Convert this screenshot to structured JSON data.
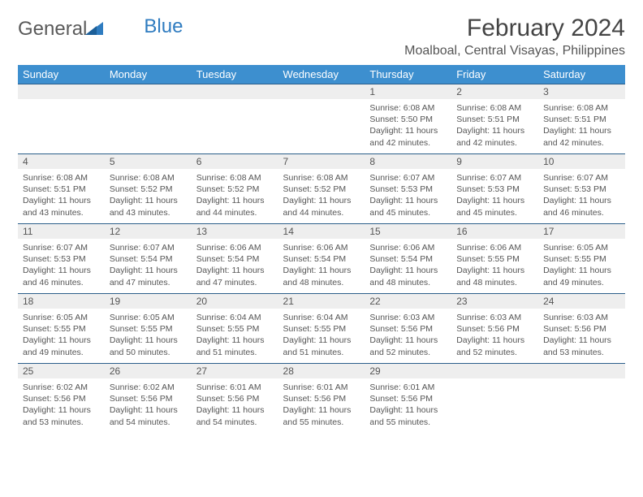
{
  "brand": {
    "part1": "General",
    "part2": "Blue"
  },
  "title": "February 2024",
  "location": "Moalboal, Central Visayas, Philippines",
  "colors": {
    "header_bg": "#3d8fcf",
    "header_text": "#ffffff",
    "daynum_bg": "#eeeeee",
    "week_divider": "#2b5e8a",
    "text": "#555555",
    "brand_blue": "#2f7cc0"
  },
  "day_names": [
    "Sunday",
    "Monday",
    "Tuesday",
    "Wednesday",
    "Thursday",
    "Friday",
    "Saturday"
  ],
  "weeks": [
    [
      null,
      null,
      null,
      null,
      {
        "n": "1",
        "sr": "6:08 AM",
        "ss": "5:50 PM",
        "dl": "11 hours and 42 minutes."
      },
      {
        "n": "2",
        "sr": "6:08 AM",
        "ss": "5:51 PM",
        "dl": "11 hours and 42 minutes."
      },
      {
        "n": "3",
        "sr": "6:08 AM",
        "ss": "5:51 PM",
        "dl": "11 hours and 42 minutes."
      }
    ],
    [
      {
        "n": "4",
        "sr": "6:08 AM",
        "ss": "5:51 PM",
        "dl": "11 hours and 43 minutes."
      },
      {
        "n": "5",
        "sr": "6:08 AM",
        "ss": "5:52 PM",
        "dl": "11 hours and 43 minutes."
      },
      {
        "n": "6",
        "sr": "6:08 AM",
        "ss": "5:52 PM",
        "dl": "11 hours and 44 minutes."
      },
      {
        "n": "7",
        "sr": "6:08 AM",
        "ss": "5:52 PM",
        "dl": "11 hours and 44 minutes."
      },
      {
        "n": "8",
        "sr": "6:07 AM",
        "ss": "5:53 PM",
        "dl": "11 hours and 45 minutes."
      },
      {
        "n": "9",
        "sr": "6:07 AM",
        "ss": "5:53 PM",
        "dl": "11 hours and 45 minutes."
      },
      {
        "n": "10",
        "sr": "6:07 AM",
        "ss": "5:53 PM",
        "dl": "11 hours and 46 minutes."
      }
    ],
    [
      {
        "n": "11",
        "sr": "6:07 AM",
        "ss": "5:53 PM",
        "dl": "11 hours and 46 minutes."
      },
      {
        "n": "12",
        "sr": "6:07 AM",
        "ss": "5:54 PM",
        "dl": "11 hours and 47 minutes."
      },
      {
        "n": "13",
        "sr": "6:06 AM",
        "ss": "5:54 PM",
        "dl": "11 hours and 47 minutes."
      },
      {
        "n": "14",
        "sr": "6:06 AM",
        "ss": "5:54 PM",
        "dl": "11 hours and 48 minutes."
      },
      {
        "n": "15",
        "sr": "6:06 AM",
        "ss": "5:54 PM",
        "dl": "11 hours and 48 minutes."
      },
      {
        "n": "16",
        "sr": "6:06 AM",
        "ss": "5:55 PM",
        "dl": "11 hours and 48 minutes."
      },
      {
        "n": "17",
        "sr": "6:05 AM",
        "ss": "5:55 PM",
        "dl": "11 hours and 49 minutes."
      }
    ],
    [
      {
        "n": "18",
        "sr": "6:05 AM",
        "ss": "5:55 PM",
        "dl": "11 hours and 49 minutes."
      },
      {
        "n": "19",
        "sr": "6:05 AM",
        "ss": "5:55 PM",
        "dl": "11 hours and 50 minutes."
      },
      {
        "n": "20",
        "sr": "6:04 AM",
        "ss": "5:55 PM",
        "dl": "11 hours and 51 minutes."
      },
      {
        "n": "21",
        "sr": "6:04 AM",
        "ss": "5:55 PM",
        "dl": "11 hours and 51 minutes."
      },
      {
        "n": "22",
        "sr": "6:03 AM",
        "ss": "5:56 PM",
        "dl": "11 hours and 52 minutes."
      },
      {
        "n": "23",
        "sr": "6:03 AM",
        "ss": "5:56 PM",
        "dl": "11 hours and 52 minutes."
      },
      {
        "n": "24",
        "sr": "6:03 AM",
        "ss": "5:56 PM",
        "dl": "11 hours and 53 minutes."
      }
    ],
    [
      {
        "n": "25",
        "sr": "6:02 AM",
        "ss": "5:56 PM",
        "dl": "11 hours and 53 minutes."
      },
      {
        "n": "26",
        "sr": "6:02 AM",
        "ss": "5:56 PM",
        "dl": "11 hours and 54 minutes."
      },
      {
        "n": "27",
        "sr": "6:01 AM",
        "ss": "5:56 PM",
        "dl": "11 hours and 54 minutes."
      },
      {
        "n": "28",
        "sr": "6:01 AM",
        "ss": "5:56 PM",
        "dl": "11 hours and 55 minutes."
      },
      {
        "n": "29",
        "sr": "6:01 AM",
        "ss": "5:56 PM",
        "dl": "11 hours and 55 minutes."
      },
      null,
      null
    ]
  ],
  "labels": {
    "sunrise": "Sunrise:",
    "sunset": "Sunset:",
    "daylight": "Daylight:"
  }
}
